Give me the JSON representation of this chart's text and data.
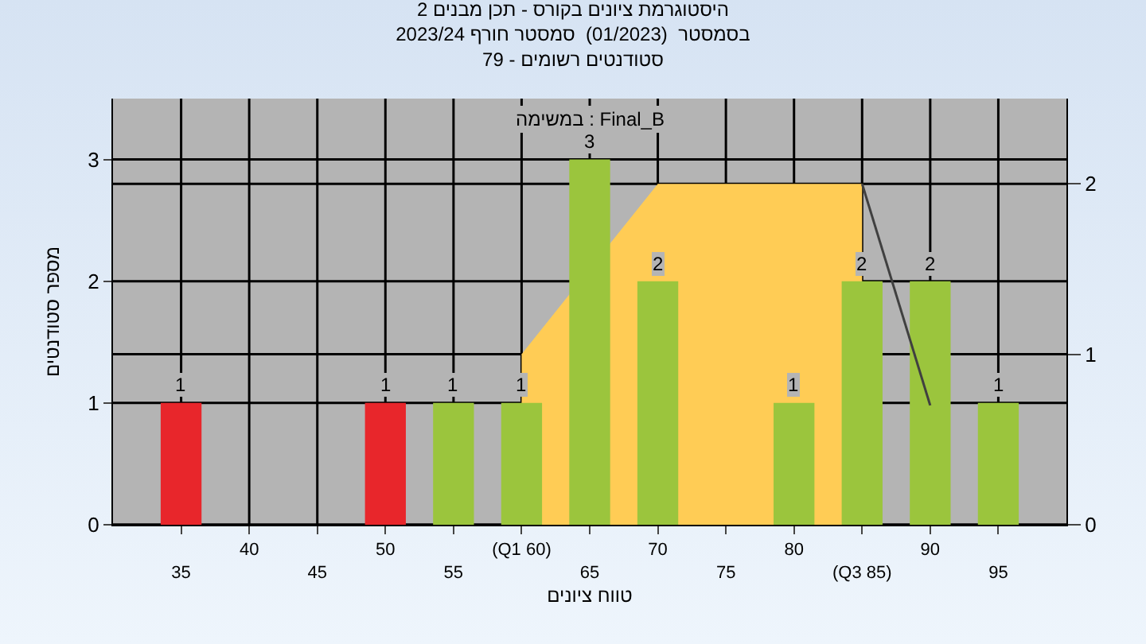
{
  "chart_data": {
    "type": "bar",
    "title": "היסטוגרמת ציונים בקורס - תכן מבנים 2\nבסמסטר  (01/2023)  סמסטר חורף 2023/24\nסטודנטים רשומים - 79",
    "xlabel": "טווח ציונים",
    "ylabel": "מספר סטודנטים",
    "annotations": [
      "במשימה : Final_B"
    ],
    "categories": [
      "35",
      "40",
      "45",
      "50",
      "55",
      "(Q1 60)",
      "65",
      "70",
      "75",
      "80",
      "(Q3 85)",
      "90",
      "95"
    ],
    "series": [
      {
        "colors": [
          "#e8262b",
          "#e8262b",
          "#e8262b",
          "#e8262b",
          "#9bc53d",
          "#9bc53d",
          "#9bc53d",
          "#9bc53d",
          "#9bc53d",
          "#9bc53d",
          "#9bc53d",
          "#9bc53d",
          "#9bc53d"
        ],
        "values": [
          1,
          null,
          null,
          1,
          1,
          1,
          3,
          2,
          null,
          1,
          2,
          2,
          1
        ],
        "value_labels": [
          "1",
          null,
          null,
          "1",
          "1",
          "1",
          "3",
          "2",
          null,
          "1",
          "2",
          "2",
          "1"
        ]
      },
      {
        "type": "area",
        "axis": "y2",
        "color": "#ffcc55",
        "values": [
          null,
          null,
          null,
          null,
          null,
          1,
          null,
          2,
          2,
          2,
          2,
          null,
          null
        ]
      },
      {
        "type": "line",
        "axis": "y2",
        "color": "#404040",
        "values": [
          null,
          null,
          null,
          null,
          null,
          null,
          null,
          null,
          null,
          null,
          2,
          0.7,
          null
        ]
      }
    ],
    "ylim": [
      0,
      3.5
    ],
    "yticks": [
      0,
      1,
      2,
      3
    ],
    "y2lim": [
      0,
      2.5
    ],
    "y2ticks": [
      0,
      1,
      2
    ],
    "grid": true
  }
}
